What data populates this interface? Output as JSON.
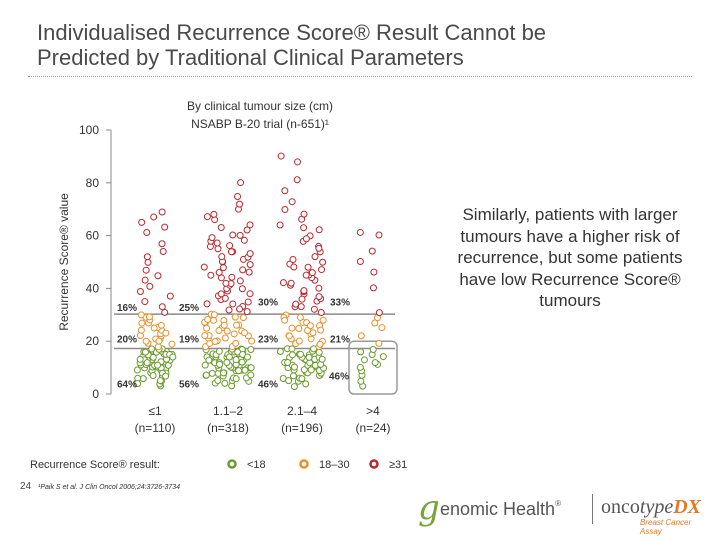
{
  "title_line1": "Individualised Recurrence Score® Result Cannot be",
  "title_line2": "Predicted by Traditional Clinical Parameters",
  "side_text": "Similarly, patients with larger tumours have a higher risk of recurrence, but some patients have low Recurrence Score® tumours",
  "page_number": "24",
  "footnote": "¹Paik S et al. J Clin Oncol 2006;24:3726-3734",
  "logo": {
    "mark": "g",
    "company": "enomic Health",
    "product_a": "onco",
    "product_b": "type",
    "product_c": "DX",
    "tagline": "Breast Cancer Assay"
  },
  "colors": {
    "low": "#6a9a2e",
    "intermediate": "#e8902a",
    "high": "#b8282e",
    "box": "#9a9a9a"
  },
  "chart_data": {
    "type": "scatter",
    "title": "By clinical tumour size (cm)",
    "subtitle": "NSABP B-20 trial (n-651)¹",
    "ylabel": "Recurrence Score® value",
    "ylim": [
      0,
      100
    ],
    "yticks": [
      0,
      20,
      40,
      60,
      80,
      100
    ],
    "grid": false,
    "categories": [
      "≤1\n(n=110)",
      "1.1–2\n(n=318)",
      "2.1–4\n(n=196)",
      ">4\n(n=24)"
    ],
    "cutoffs": [
      18,
      31
    ],
    "legend": {
      "title": "Recurrence Score® result:",
      "entries": [
        {
          "label": "<18",
          "color": "#6a9a2e"
        },
        {
          "label": "18–30",
          "color": "#e8902a"
        },
        {
          "label": "≥31",
          "color": "#b8282e"
        }
      ]
    },
    "group_percentages": [
      {
        "category": "≤1",
        "high": "16%",
        "intermediate": "20%",
        "low": "64%"
      },
      {
        "category": "1.1–2",
        "high": "25%",
        "intermediate": "19%",
        "low": "56%"
      },
      {
        "category": "2.1–4",
        "high": "30%",
        "intermediate": "23%",
        "low": "46%"
      },
      {
        "category": ">4",
        "high": "33%",
        "intermediate": "21%",
        "low": "46%"
      }
    ],
    "series": [
      {
        "category": "≤1",
        "values": [
          3,
          4,
          5,
          6,
          7,
          8,
          9,
          10,
          10,
          11,
          11,
          12,
          12,
          13,
          13,
          13,
          14,
          14,
          15,
          15,
          15,
          16,
          16,
          16,
          17,
          17,
          17,
          8,
          9,
          10,
          11,
          12,
          13,
          14,
          15,
          16,
          17,
          6,
          7,
          9,
          11,
          13,
          15,
          4,
          5,
          8,
          12,
          14,
          16,
          10,
          11,
          12,
          13,
          14,
          15,
          16,
          17,
          9,
          8,
          7,
          18,
          19,
          20,
          21,
          22,
          23,
          24,
          25,
          26,
          27,
          28,
          29,
          30,
          19,
          21,
          23,
          25,
          27,
          29,
          20,
          22,
          24,
          31,
          33,
          35,
          37,
          39,
          41,
          43,
          45,
          47,
          50,
          52,
          54,
          57,
          61,
          63,
          65,
          67,
          69
        ]
      },
      {
        "category": "1.1–2",
        "values": [
          3,
          4,
          5,
          5,
          6,
          6,
          7,
          7,
          7,
          8,
          8,
          8,
          9,
          9,
          9,
          10,
          10,
          10,
          10,
          11,
          11,
          11,
          11,
          12,
          12,
          12,
          12,
          13,
          13,
          13,
          13,
          14,
          14,
          14,
          14,
          15,
          15,
          15,
          15,
          16,
          16,
          16,
          16,
          17,
          17,
          17,
          17,
          4,
          6,
          8,
          10,
          12,
          14,
          16,
          5,
          7,
          9,
          11,
          13,
          15,
          17,
          9,
          10,
          11,
          12,
          13,
          14,
          18,
          19,
          20,
          21,
          22,
          23,
          24,
          25,
          26,
          27,
          28,
          29,
          30,
          18,
          19,
          20,
          21,
          22,
          23,
          24,
          25,
          26,
          27,
          28,
          29,
          30,
          20,
          22,
          24,
          26,
          28,
          31,
          32,
          33,
          34,
          35,
          36,
          37,
          38,
          39,
          40,
          41,
          42,
          43,
          44,
          45,
          46,
          47,
          48,
          49,
          50,
          51,
          52,
          53,
          54,
          55,
          56,
          57,
          58,
          59,
          60,
          62,
          64,
          66,
          68,
          70,
          72,
          75,
          80,
          32,
          34,
          36,
          38,
          40,
          42,
          44,
          46,
          48,
          50,
          52,
          54,
          56,
          58,
          60,
          63,
          67
        ]
      },
      {
        "category": "2.1–4",
        "values": [
          3,
          4,
          5,
          6,
          6,
          7,
          7,
          8,
          8,
          9,
          9,
          10,
          10,
          11,
          11,
          12,
          12,
          13,
          13,
          14,
          14,
          15,
          15,
          16,
          16,
          17,
          17,
          5,
          7,
          9,
          11,
          13,
          15,
          17,
          8,
          10,
          12,
          14,
          16,
          6,
          9,
          12,
          15,
          10,
          11,
          13,
          14,
          18,
          19,
          20,
          21,
          22,
          23,
          24,
          25,
          26,
          27,
          28,
          29,
          30,
          19,
          21,
          23,
          25,
          27,
          29,
          20,
          22,
          24,
          26,
          28,
          31,
          32,
          33,
          34,
          35,
          36,
          37,
          38,
          39,
          40,
          41,
          42,
          43,
          44,
          45,
          46,
          47,
          48,
          49,
          50,
          52,
          54,
          56,
          58,
          60,
          62,
          64,
          66,
          68,
          70,
          73,
          77,
          81,
          88,
          90,
          33,
          36,
          39,
          42,
          45,
          48,
          51,
          55,
          59,
          63
        ]
      },
      {
        "category": ">4",
        "values": [
          3,
          5,
          7,
          9,
          10,
          11,
          12,
          13,
          14,
          15,
          16,
          17,
          19,
          22,
          25,
          27,
          29,
          31,
          40,
          46,
          50,
          54,
          60,
          61
        ]
      }
    ],
    "highlight_box": {
      "category": ">4",
      "range": [
        0,
        20
      ]
    }
  }
}
